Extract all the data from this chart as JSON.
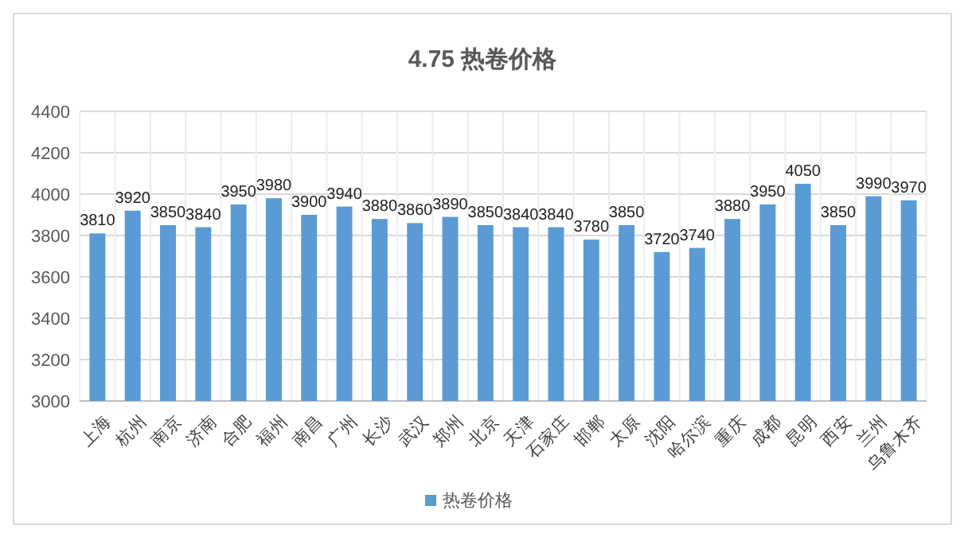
{
  "chart_data": {
    "type": "bar",
    "title": "4.75 热卷价格",
    "categories": [
      "上海",
      "杭州",
      "南京",
      "济南",
      "合肥",
      "福州",
      "南昌",
      "广州",
      "长沙",
      "武汉",
      "郑州",
      "北京",
      "天津",
      "石家庄",
      "邯郸",
      "太原",
      "沈阳",
      "哈尔滨",
      "重庆",
      "成都",
      "昆明",
      "西安",
      "兰州",
      "乌鲁木齐"
    ],
    "series": [
      {
        "name": "热卷价格",
        "color": "#5b9bd5",
        "values": [
          3810,
          3920,
          3850,
          3840,
          3950,
          3980,
          3900,
          3940,
          3880,
          3860,
          3890,
          3850,
          3840,
          3840,
          3780,
          3850,
          3720,
          3740,
          3880,
          3950,
          4050,
          3850,
          3990,
          3970
        ]
      }
    ],
    "ylim": [
      3000,
      4400
    ],
    "yticks": [
      3000,
      3200,
      3400,
      3600,
      3800,
      4000,
      4200,
      4400
    ],
    "grid": true,
    "legend": "bottom",
    "data_labels": true
  }
}
